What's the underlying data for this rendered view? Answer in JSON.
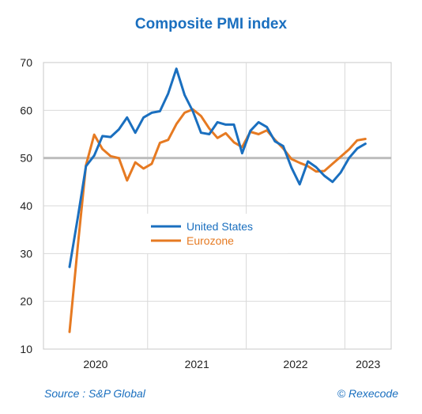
{
  "chart_data": {
    "type": "line",
    "title": "Composite PMI index",
    "xlabel": "",
    "ylabel": "",
    "ylim": [
      10,
      70
    ],
    "yticks": [
      10,
      20,
      30,
      40,
      50,
      60,
      70
    ],
    "xticks": [
      "2020",
      "2021",
      "2022",
      "2023"
    ],
    "x_range_months": [
      "2020-03",
      "2023-04"
    ],
    "reference_line": 50,
    "grid": true,
    "legend_position": "center",
    "x": [
      "2020-03",
      "2020-04",
      "2020-05",
      "2020-06",
      "2020-07",
      "2020-08",
      "2020-09",
      "2020-10",
      "2020-11",
      "2020-12",
      "2021-01",
      "2021-02",
      "2021-03",
      "2021-04",
      "2021-05",
      "2021-06",
      "2021-07",
      "2021-08",
      "2021-09",
      "2021-10",
      "2021-11",
      "2021-12",
      "2022-01",
      "2022-02",
      "2022-03",
      "2022-04",
      "2022-05",
      "2022-06",
      "2022-07",
      "2022-08",
      "2022-09",
      "2022-10",
      "2022-11",
      "2022-12",
      "2023-01",
      "2023-02",
      "2023-03"
    ],
    "series": [
      {
        "name": "United States",
        "color": "#1a6fbf",
        "values": [
          27.2,
          37.5,
          48.3,
          50.5,
          54.6,
          54.4,
          56.0,
          58.5,
          55.3,
          58.5,
          59.5,
          59.8,
          63.5,
          68.7,
          63.2,
          59.8,
          55.3,
          55.0,
          57.5,
          57.0,
          57.0,
          51.0,
          55.7,
          57.5,
          56.5,
          53.5,
          52.5,
          48.0,
          44.5,
          49.3,
          48.1,
          46.3,
          45.0,
          47.0,
          50.0,
          52.0,
          53.0
        ]
      },
      {
        "name": "Eurozone",
        "color": "#e67a22",
        "values": [
          13.6,
          31.5,
          48.5,
          54.9,
          51.9,
          50.4,
          50.0,
          45.3,
          49.1,
          47.8,
          48.8,
          53.2,
          53.8,
          57.1,
          59.5,
          60.2,
          58.8,
          56.2,
          54.2,
          55.2,
          53.3,
          52.3,
          55.5,
          55.0,
          55.8,
          53.8,
          52.0,
          49.8,
          49.0,
          48.3,
          47.2,
          47.3,
          48.8,
          50.3,
          51.8,
          53.7,
          54.0
        ]
      }
    ]
  },
  "footer": {
    "source": "Source : S&P Global",
    "credit": "© Rexecode"
  }
}
